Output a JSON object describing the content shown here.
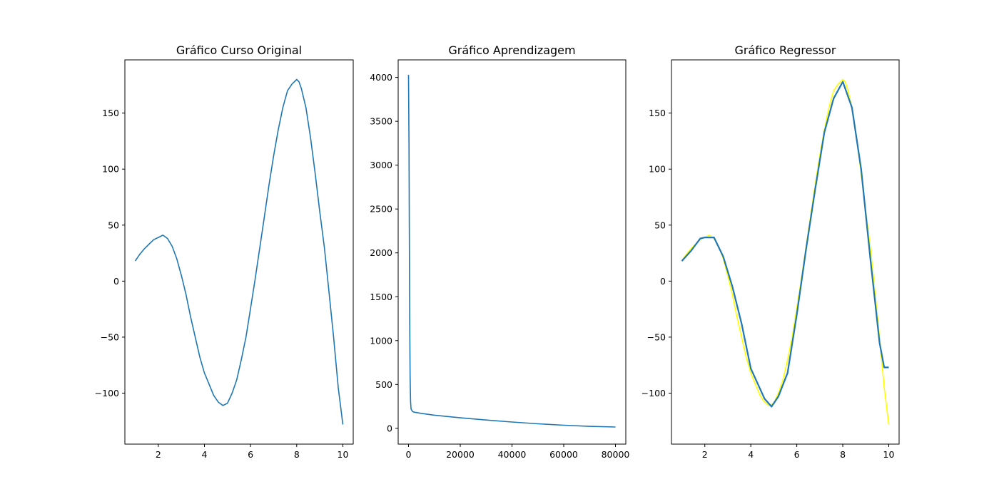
{
  "chart_data": [
    {
      "type": "line",
      "title": "Gráfico Curso Original",
      "xlim": [
        0.55,
        10.45
      ],
      "ylim": [
        -145.5,
        197.5
      ],
      "xticks": [
        2,
        4,
        6,
        8,
        10
      ],
      "yticks": [
        -100,
        -50,
        0,
        50,
        100,
        150
      ],
      "grid": false,
      "series": [
        {
          "color": "#1f77b4",
          "x": [
            1.0,
            1.2,
            1.4,
            1.6,
            1.8,
            2.0,
            2.2,
            2.4,
            2.6,
            2.8,
            3.0,
            3.2,
            3.4,
            3.6,
            3.8,
            4.0,
            4.2,
            4.4,
            4.6,
            4.8,
            5.0,
            5.2,
            5.4,
            5.6,
            5.8,
            6.0,
            6.2,
            6.4,
            6.6,
            6.8,
            7.0,
            7.2,
            7.4,
            7.6,
            7.8,
            8.0,
            8.1,
            8.2,
            8.4,
            8.6,
            8.8,
            9.0,
            9.2,
            9.4,
            9.6,
            9.8,
            10.0
          ],
          "y": [
            18,
            24,
            29,
            33,
            37,
            39,
            41,
            38,
            31,
            20,
            5,
            -12,
            -32,
            -50,
            -68,
            -82,
            -92,
            -102,
            -108,
            -111,
            -109,
            -100,
            -88,
            -70,
            -50,
            -24,
            2,
            30,
            58,
            86,
            112,
            135,
            155,
            170,
            176,
            180,
            178,
            172,
            155,
            128,
            96,
            62,
            30,
            -10,
            -50,
            -95,
            -128
          ]
        }
      ]
    },
    {
      "type": "line",
      "title": "Gráfico Aprendizagem",
      "xlim": [
        -4000,
        84000
      ],
      "ylim": [
        -180,
        4200
      ],
      "xticks": [
        0,
        20000,
        40000,
        60000,
        80000
      ],
      "yticks": [
        0,
        500,
        1000,
        1500,
        2000,
        2500,
        3000,
        3500,
        4000
      ],
      "grid": false,
      "series": [
        {
          "color": "#1f77b4",
          "x": [
            0,
            200,
            400,
            600,
            800,
            1000,
            1500,
            2000,
            3000,
            5000,
            10000,
            20000,
            30000,
            40000,
            50000,
            60000,
            70000,
            80000
          ],
          "y": [
            4030,
            3200,
            1500,
            600,
            300,
            220,
            195,
            185,
            180,
            170,
            150,
            120,
            95,
            72,
            52,
            35,
            22,
            15
          ]
        }
      ]
    },
    {
      "type": "line",
      "title": "Gráfico Regressor",
      "xlim": [
        0.55,
        10.45
      ],
      "ylim": [
        -145.5,
        197.5
      ],
      "xticks": [
        2,
        4,
        6,
        8,
        10
      ],
      "yticks": [
        -100,
        -50,
        0,
        50,
        100,
        150
      ],
      "grid": false,
      "series": [
        {
          "color": "#ffff00",
          "x": [
            1.0,
            1.2,
            1.4,
            1.6,
            1.8,
            2.0,
            2.2,
            2.4,
            2.6,
            2.8,
            3.0,
            3.2,
            3.4,
            3.6,
            3.8,
            4.0,
            4.2,
            4.4,
            4.6,
            4.8,
            5.0,
            5.2,
            5.4,
            5.6,
            5.8,
            6.0,
            6.2,
            6.4,
            6.6,
            6.8,
            7.0,
            7.2,
            7.4,
            7.6,
            7.8,
            8.0,
            8.1,
            8.2,
            8.4,
            8.6,
            8.8,
            9.0,
            9.2,
            9.4,
            9.6,
            9.8,
            10.0
          ],
          "y": [
            18,
            24,
            29,
            33,
            37,
            39,
            41,
            38,
            31,
            20,
            5,
            -12,
            -32,
            -50,
            -68,
            -82,
            -92,
            -102,
            -108,
            -111,
            -109,
            -100,
            -88,
            -70,
            -50,
            -24,
            2,
            30,
            58,
            86,
            112,
            135,
            155,
            170,
            176,
            180,
            178,
            172,
            155,
            128,
            96,
            62,
            30,
            -10,
            -50,
            -95,
            -128
          ]
        },
        {
          "color": "#1f77b4",
          "x": [
            1.0,
            1.4,
            1.8,
            2.0,
            2.4,
            2.8,
            3.2,
            3.6,
            4.0,
            4.6,
            4.9,
            5.2,
            5.6,
            6.0,
            6.4,
            6.8,
            7.2,
            7.6,
            8.0,
            8.4,
            8.8,
            9.2,
            9.6,
            9.8,
            10.0
          ],
          "y": [
            18,
            27,
            38,
            39,
            39,
            22,
            -5,
            -38,
            -78,
            -105,
            -112,
            -103,
            -82,
            -30,
            28,
            82,
            133,
            163,
            178,
            155,
            100,
            20,
            -55,
            -77,
            -77
          ]
        }
      ]
    }
  ]
}
